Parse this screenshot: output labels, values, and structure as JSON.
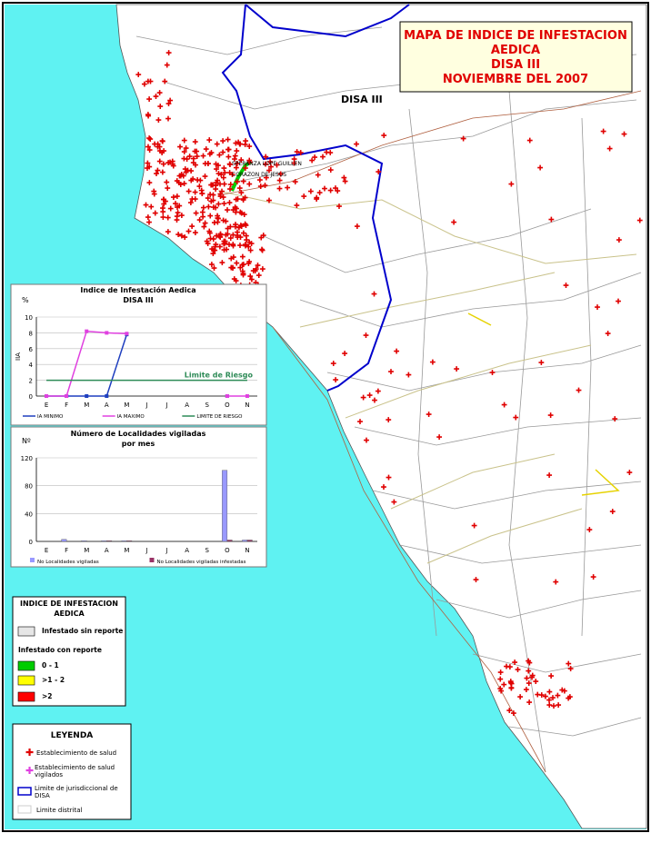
{
  "title": [
    "MAPA DE INDICE DE INFESTACION",
    "AEDICA",
    "DISA III",
    "NOVIEMBRE DEL 2007"
  ],
  "map_labels": [
    "DISA III",
    "SPERANZA LOPE GUILLEN",
    "CORAZON DE JESUS"
  ],
  "chart_data": [
    {
      "type": "line",
      "title": [
        "Indice de Infestación Aedica",
        "DISA III"
      ],
      "y_unit": "%",
      "y_label": "IIA",
      "categories": [
        "E",
        "F",
        "M",
        "A",
        "M",
        "J",
        "J",
        "A",
        "S",
        "O",
        "N"
      ],
      "ylim": [
        0,
        10
      ],
      "yticks": [
        0,
        2,
        4,
        6,
        8,
        10
      ],
      "grid": true,
      "annotation": "Limite de Riesgo",
      "series": [
        {
          "name": "IA MINIMO",
          "color": "#1f3fbf",
          "values": [
            0,
            0,
            0,
            0,
            7.8,
            null,
            null,
            null,
            null,
            0,
            null
          ]
        },
        {
          "name": "IA MAXIMO",
          "color": "#e040e0",
          "values": [
            0,
            0,
            8.2,
            8.0,
            7.9,
            null,
            null,
            null,
            null,
            0,
            0
          ]
        },
        {
          "name": "LIMITE DE RIESGO",
          "color": "#2e8b57",
          "values": [
            2,
            2,
            2,
            2,
            2,
            2,
            2,
            2,
            2,
            2,
            2
          ]
        }
      ]
    },
    {
      "type": "bar",
      "title": [
        "Número de Localidades vigiladas",
        "por mes"
      ],
      "y_unit": "Nº",
      "categories": [
        "E",
        "F",
        "M",
        "A",
        "M",
        "J",
        "J",
        "A",
        "S",
        "O",
        "N"
      ],
      "ylim": [
        0,
        120
      ],
      "yticks": [
        0,
        40,
        80,
        120
      ],
      "grid": true,
      "series": [
        {
          "name": "No Localidades vigiladas",
          "color": "#9999ff",
          "values": [
            0,
            3,
            1,
            1,
            1,
            0,
            0,
            0,
            0,
            102,
            2
          ]
        },
        {
          "name": "No Localidades vigiladas infestadas",
          "color": "#993366",
          "values": [
            0,
            0,
            0,
            1,
            1,
            0,
            0,
            0,
            0,
            2,
            2
          ]
        }
      ]
    }
  ],
  "legend_index": {
    "title": [
      "INDICE DE INFESTACION",
      "AEDICA"
    ],
    "items": [
      {
        "label": "Infestado sin reporte",
        "color": "#e6e6e6"
      },
      {
        "label": "Infestado con reporte"
      },
      {
        "label": "0 - 1",
        "color": "#00cc00"
      },
      {
        "label": ">1 - 2",
        "color": "#ffff00"
      },
      {
        "label": ">2",
        "color": "#ff0000"
      }
    ]
  },
  "legend": {
    "title": "LEYENDA",
    "items": [
      "Establecimiento de salud",
      "Establecimiento de salud vigilados",
      "Limite de jurisdiccional de DISA",
      "Limite distrital"
    ]
  }
}
